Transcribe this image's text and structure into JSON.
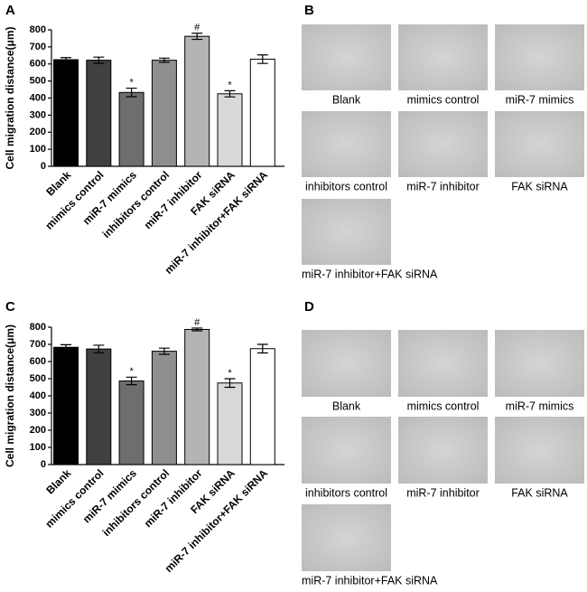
{
  "chart_data": [
    {
      "type": "bar",
      "panel_label": "A",
      "ylabel": "Cell migration distance(μm)",
      "categories": [
        "Blank",
        "mimics control",
        "miR-7 mimics",
        "inhibitors control",
        "miR-7 inhibitor",
        "FAK siRNA",
        "miR-7 inhibitor+FAK siRNA"
      ],
      "values": [
        625,
        622,
        433,
        622,
        762,
        425,
        628
      ],
      "errors": [
        12,
        18,
        25,
        12,
        18,
        18,
        25
      ],
      "markers": [
        null,
        null,
        "*",
        null,
        "#",
        "*",
        null
      ],
      "colors": [
        "#000000",
        "#404040",
        "#6e6e6e",
        "#8f8f8f",
        "#b4b4b4",
        "#d9d9d9",
        "#ffffff"
      ],
      "ylim": [
        0,
        800
      ],
      "yticks": [
        0,
        100,
        200,
        300,
        400,
        500,
        600,
        700,
        800
      ]
    },
    {
      "type": "bar",
      "panel_label": "C",
      "ylabel": "Cell migration distance(μm)",
      "categories": [
        "Blank",
        "mimics control",
        "miR-7 mimics",
        "inhibitors control",
        "miR-7 inhibitor",
        "FAK siRNA",
        "miR-7 inhibitor+FAK siRNA"
      ],
      "values": [
        683,
        673,
        487,
        660,
        787,
        475,
        675
      ],
      "errors": [
        15,
        22,
        22,
        18,
        8,
        25,
        25
      ],
      "markers": [
        null,
        null,
        "*",
        null,
        "#",
        "*",
        null
      ],
      "colors": [
        "#000000",
        "#404040",
        "#6e6e6e",
        "#8f8f8f",
        "#b4b4b4",
        "#d9d9d9",
        "#ffffff"
      ],
      "ylim": [
        0,
        800
      ],
      "yticks": [
        0,
        100,
        200,
        300,
        400,
        500,
        600,
        700,
        800
      ]
    }
  ],
  "image_panels": [
    {
      "label": "B",
      "captions": [
        "Blank",
        "mimics control",
        "miR-7 mimics",
        "inhibitors control",
        "miR-7 inhibitor",
        "FAK siRNA",
        "miR-7 inhibitor+FAK siRNA"
      ]
    },
    {
      "label": "D",
      "captions": [
        "Blank",
        "mimics control",
        "miR-7 mimics",
        "inhibitors control",
        "miR-7 inhibitor",
        "FAK siRNA",
        "miR-7 inhibitor+FAK siRNA"
      ]
    }
  ]
}
